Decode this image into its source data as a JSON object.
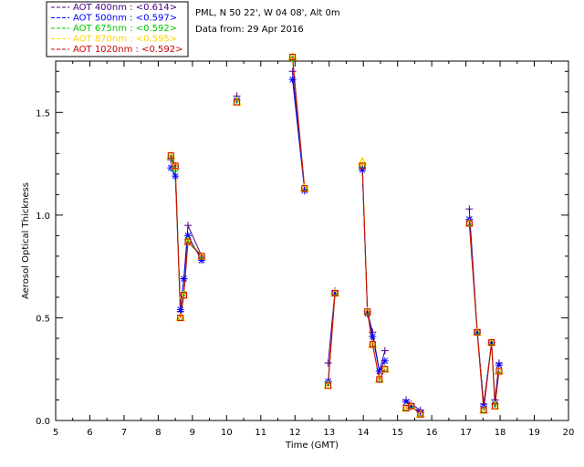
{
  "chart_data": {
    "type": "line",
    "title": "PML, N 50 22', W 04 08', Alt 0m",
    "subtitle": "Data from: 29 Apr 2016",
    "xlabel": "Time (GMT)",
    "ylabel": "Aerosol Optical Thickness",
    "xlim": [
      5,
      20
    ],
    "ylim": [
      0.0,
      1.75
    ],
    "x_ticks": [
      "5",
      "6",
      "7",
      "8",
      "9",
      "10",
      "11",
      "12",
      "13",
      "14",
      "15",
      "16",
      "17",
      "18",
      "19",
      "20"
    ],
    "y_ticks": [
      "0.0",
      "0.5",
      "1.0",
      "1.5"
    ],
    "legend_position": "top-left",
    "series": [
      {
        "name": "AOT  400nm : <0.614>",
        "color": "#4b0082",
        "marker": "plus",
        "x": [
          8.37,
          8.5,
          8.65,
          8.75,
          8.87,
          9.27,
          10.3,
          11.93,
          12.28,
          12.97,
          13.17,
          13.97,
          14.12,
          14.27,
          14.47,
          14.63,
          15.25,
          15.4,
          15.67,
          17.1,
          17.33,
          17.52,
          17.75,
          17.85,
          17.97
        ],
        "y": [
          1.27,
          1.24,
          0.53,
          0.69,
          0.95,
          0.8,
          1.58,
          1.7,
          1.12,
          0.28,
          0.63,
          1.23,
          0.53,
          0.43,
          0.24,
          0.34,
          0.1,
          0.08,
          0.05,
          1.03,
          0.44,
          0.08,
          0.38,
          0.1,
          0.28
        ]
      },
      {
        "name": "AOT  500nm : <0.597>",
        "color": "#0000ff",
        "marker": "asterisk",
        "x": [
          8.37,
          8.5,
          8.65,
          8.75,
          8.87,
          9.27,
          10.3,
          11.93,
          12.28,
          12.97,
          13.17,
          13.97,
          14.12,
          14.27,
          14.47,
          14.63,
          15.25,
          15.4,
          15.67,
          17.1,
          17.33,
          17.52,
          17.75,
          17.85,
          17.97
        ],
        "y": [
          1.23,
          1.19,
          0.54,
          0.69,
          0.9,
          0.78,
          1.56,
          1.66,
          1.12,
          0.19,
          0.62,
          1.22,
          0.52,
          0.41,
          0.24,
          0.29,
          0.09,
          0.07,
          0.04,
          0.98,
          0.43,
          0.07,
          0.38,
          0.08,
          0.27
        ]
      },
      {
        "name": "AOT  675nm : <0.592>",
        "color": "#00c800",
        "marker": "diamond",
        "x": [
          8.37,
          8.5,
          8.65,
          8.75,
          8.87,
          9.27,
          10.3,
          11.93,
          12.28,
          12.97,
          13.17,
          13.97,
          14.12,
          14.27,
          14.47,
          14.63,
          15.25,
          15.4,
          15.67,
          17.1,
          17.33,
          17.52,
          17.75,
          17.85,
          17.97
        ],
        "y": [
          1.28,
          1.22,
          0.5,
          0.62,
          0.88,
          0.8,
          1.56,
          1.76,
          1.13,
          0.18,
          0.62,
          1.24,
          0.53,
          0.37,
          0.2,
          0.25,
          0.06,
          0.07,
          0.03,
          0.96,
          0.43,
          0.05,
          0.38,
          0.08,
          0.24
        ]
      },
      {
        "name": "AOT  870nm : <0.595>",
        "color": "#ffd700",
        "marker": "triangle",
        "x": [
          8.37,
          8.5,
          8.65,
          8.75,
          8.87,
          9.27,
          10.3,
          11.93,
          12.28,
          12.97,
          13.17,
          13.97,
          14.12,
          14.27,
          14.47,
          14.63,
          15.25,
          15.4,
          15.67,
          17.1,
          17.33,
          17.52,
          17.75,
          17.85,
          17.97
        ],
        "y": [
          1.29,
          1.24,
          0.5,
          0.61,
          0.87,
          0.8,
          1.55,
          1.77,
          1.13,
          0.17,
          0.62,
          1.26,
          0.53,
          0.37,
          0.2,
          0.25,
          0.06,
          0.07,
          0.03,
          0.96,
          0.43,
          0.05,
          0.38,
          0.07,
          0.24
        ]
      },
      {
        "name": "AOT 1020nm : <0.592>",
        "color": "#cc0000",
        "marker": "square",
        "x": [
          8.37,
          8.5,
          8.65,
          8.75,
          8.87,
          9.27,
          10.3,
          11.93,
          12.28,
          12.97,
          13.17,
          13.97,
          14.12,
          14.27,
          14.47,
          14.63,
          15.25,
          15.4,
          15.67,
          17.1,
          17.33,
          17.52,
          17.75,
          17.85,
          17.97
        ],
        "y": [
          1.29,
          1.24,
          0.5,
          0.61,
          0.87,
          0.8,
          1.55,
          1.77,
          1.13,
          0.17,
          0.62,
          1.24,
          0.53,
          0.37,
          0.2,
          0.25,
          0.06,
          0.07,
          0.03,
          0.96,
          0.43,
          0.05,
          0.38,
          0.07,
          0.24
        ]
      }
    ],
    "segments": [
      [
        0,
        5
      ],
      [
        7,
        8
      ],
      [
        9,
        10
      ],
      [
        11,
        15
      ],
      [
        16,
        18
      ],
      [
        19,
        24
      ]
    ]
  }
}
